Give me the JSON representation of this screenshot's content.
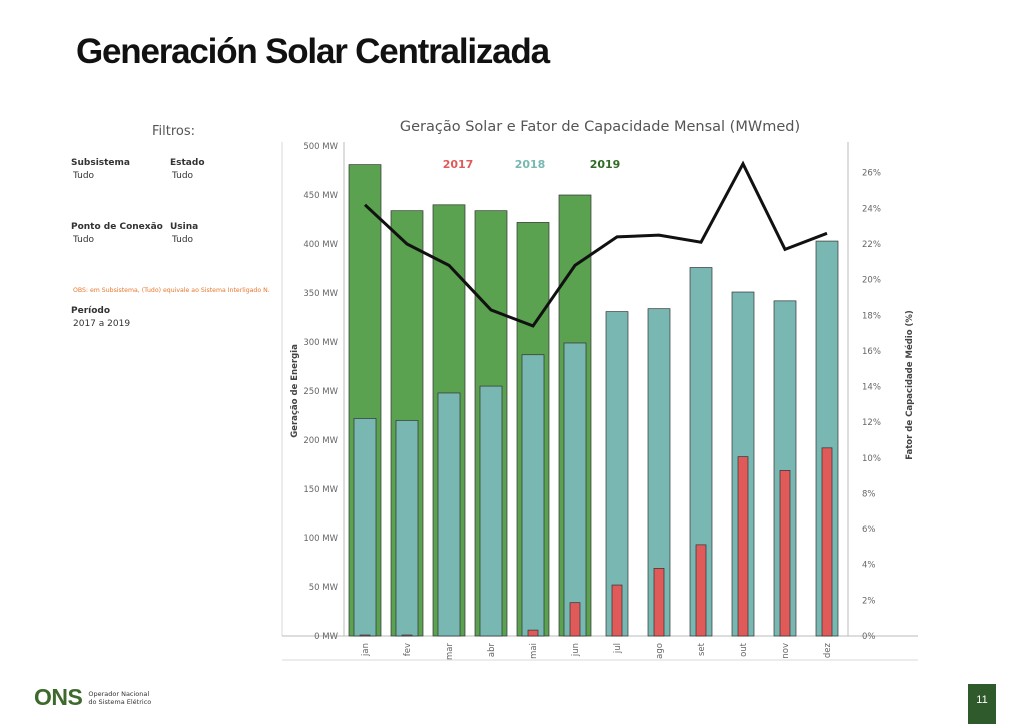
{
  "slide": {
    "title": "Generación Solar Centralizada",
    "page_number": "11"
  },
  "filters": {
    "title": "Filtros:",
    "subsistema": {
      "label": "Subsistema",
      "value": "Tudo"
    },
    "estado": {
      "label": "Estado",
      "value": "Tudo"
    },
    "ponto_conexao": {
      "label": "Ponto de Conexão",
      "value": "Tudo"
    },
    "usina": {
      "label": "Usina",
      "value": "Tudo"
    },
    "note": "OBS: em Subsistema, (Tudo) equivale ao Sistema Interligado N.",
    "periodo": {
      "label": "Período",
      "value": "2017 a 2019"
    }
  },
  "logo": {
    "mark": "ONS",
    "line1": "Operador Nacional",
    "line2": "do Sistema Elétrico"
  },
  "chart_data": {
    "type": "bar",
    "title": "Geração Solar e Fator de Capacidade Mensal (MWmed)",
    "ylabel": "Geração de Energia",
    "y2label": "Fator de Capacidade Médio (%)",
    "categories": [
      "jan",
      "fev",
      "mar",
      "abr",
      "mai",
      "jun",
      "jul",
      "ago",
      "set",
      "out",
      "nov",
      "dez"
    ],
    "ylim": [
      0,
      500
    ],
    "yticks": [
      0,
      50,
      100,
      150,
      200,
      250,
      300,
      350,
      400,
      450,
      500
    ],
    "ytick_labels": [
      "0 MW",
      "50 MW",
      "100 MW",
      "150 MW",
      "200 MW",
      "250 MW",
      "300 MW",
      "350 MW",
      "400 MW",
      "450 MW",
      "500 MW"
    ],
    "y2lim": [
      0,
      27.5
    ],
    "y2ticks": [
      0,
      2,
      4,
      6,
      8,
      10,
      12,
      14,
      16,
      18,
      20,
      22,
      24,
      26
    ],
    "y2tick_labels": [
      "0%",
      "2%",
      "4%",
      "6%",
      "8%",
      "10%",
      "12%",
      "14%",
      "16%",
      "18%",
      "20%",
      "22%",
      "24%",
      "26%"
    ],
    "legend_position": "top-left",
    "grid": false,
    "series": [
      {
        "name": "2019",
        "color": "#5aa150",
        "values": [
          481,
          434,
          440,
          434,
          422,
          450,
          null,
          null,
          null,
          null,
          null,
          null
        ]
      },
      {
        "name": "2018",
        "color": "#78b7b2",
        "values": [
          222,
          220,
          248,
          255,
          287,
          299,
          331,
          334,
          376,
          351,
          342,
          403
        ]
      },
      {
        "name": "2017",
        "color": "#e05a5a",
        "values": [
          1,
          1,
          0,
          0,
          6,
          34,
          52,
          69,
          93,
          183,
          169,
          192
        ]
      }
    ],
    "line_series": {
      "axis": "secondary",
      "color": "#111111",
      "values": [
        24.2,
        22.0,
        20.8,
        18.3,
        17.4,
        20.8,
        22.4,
        22.5,
        22.1,
        26.5,
        21.7,
        22.6
      ]
    }
  }
}
